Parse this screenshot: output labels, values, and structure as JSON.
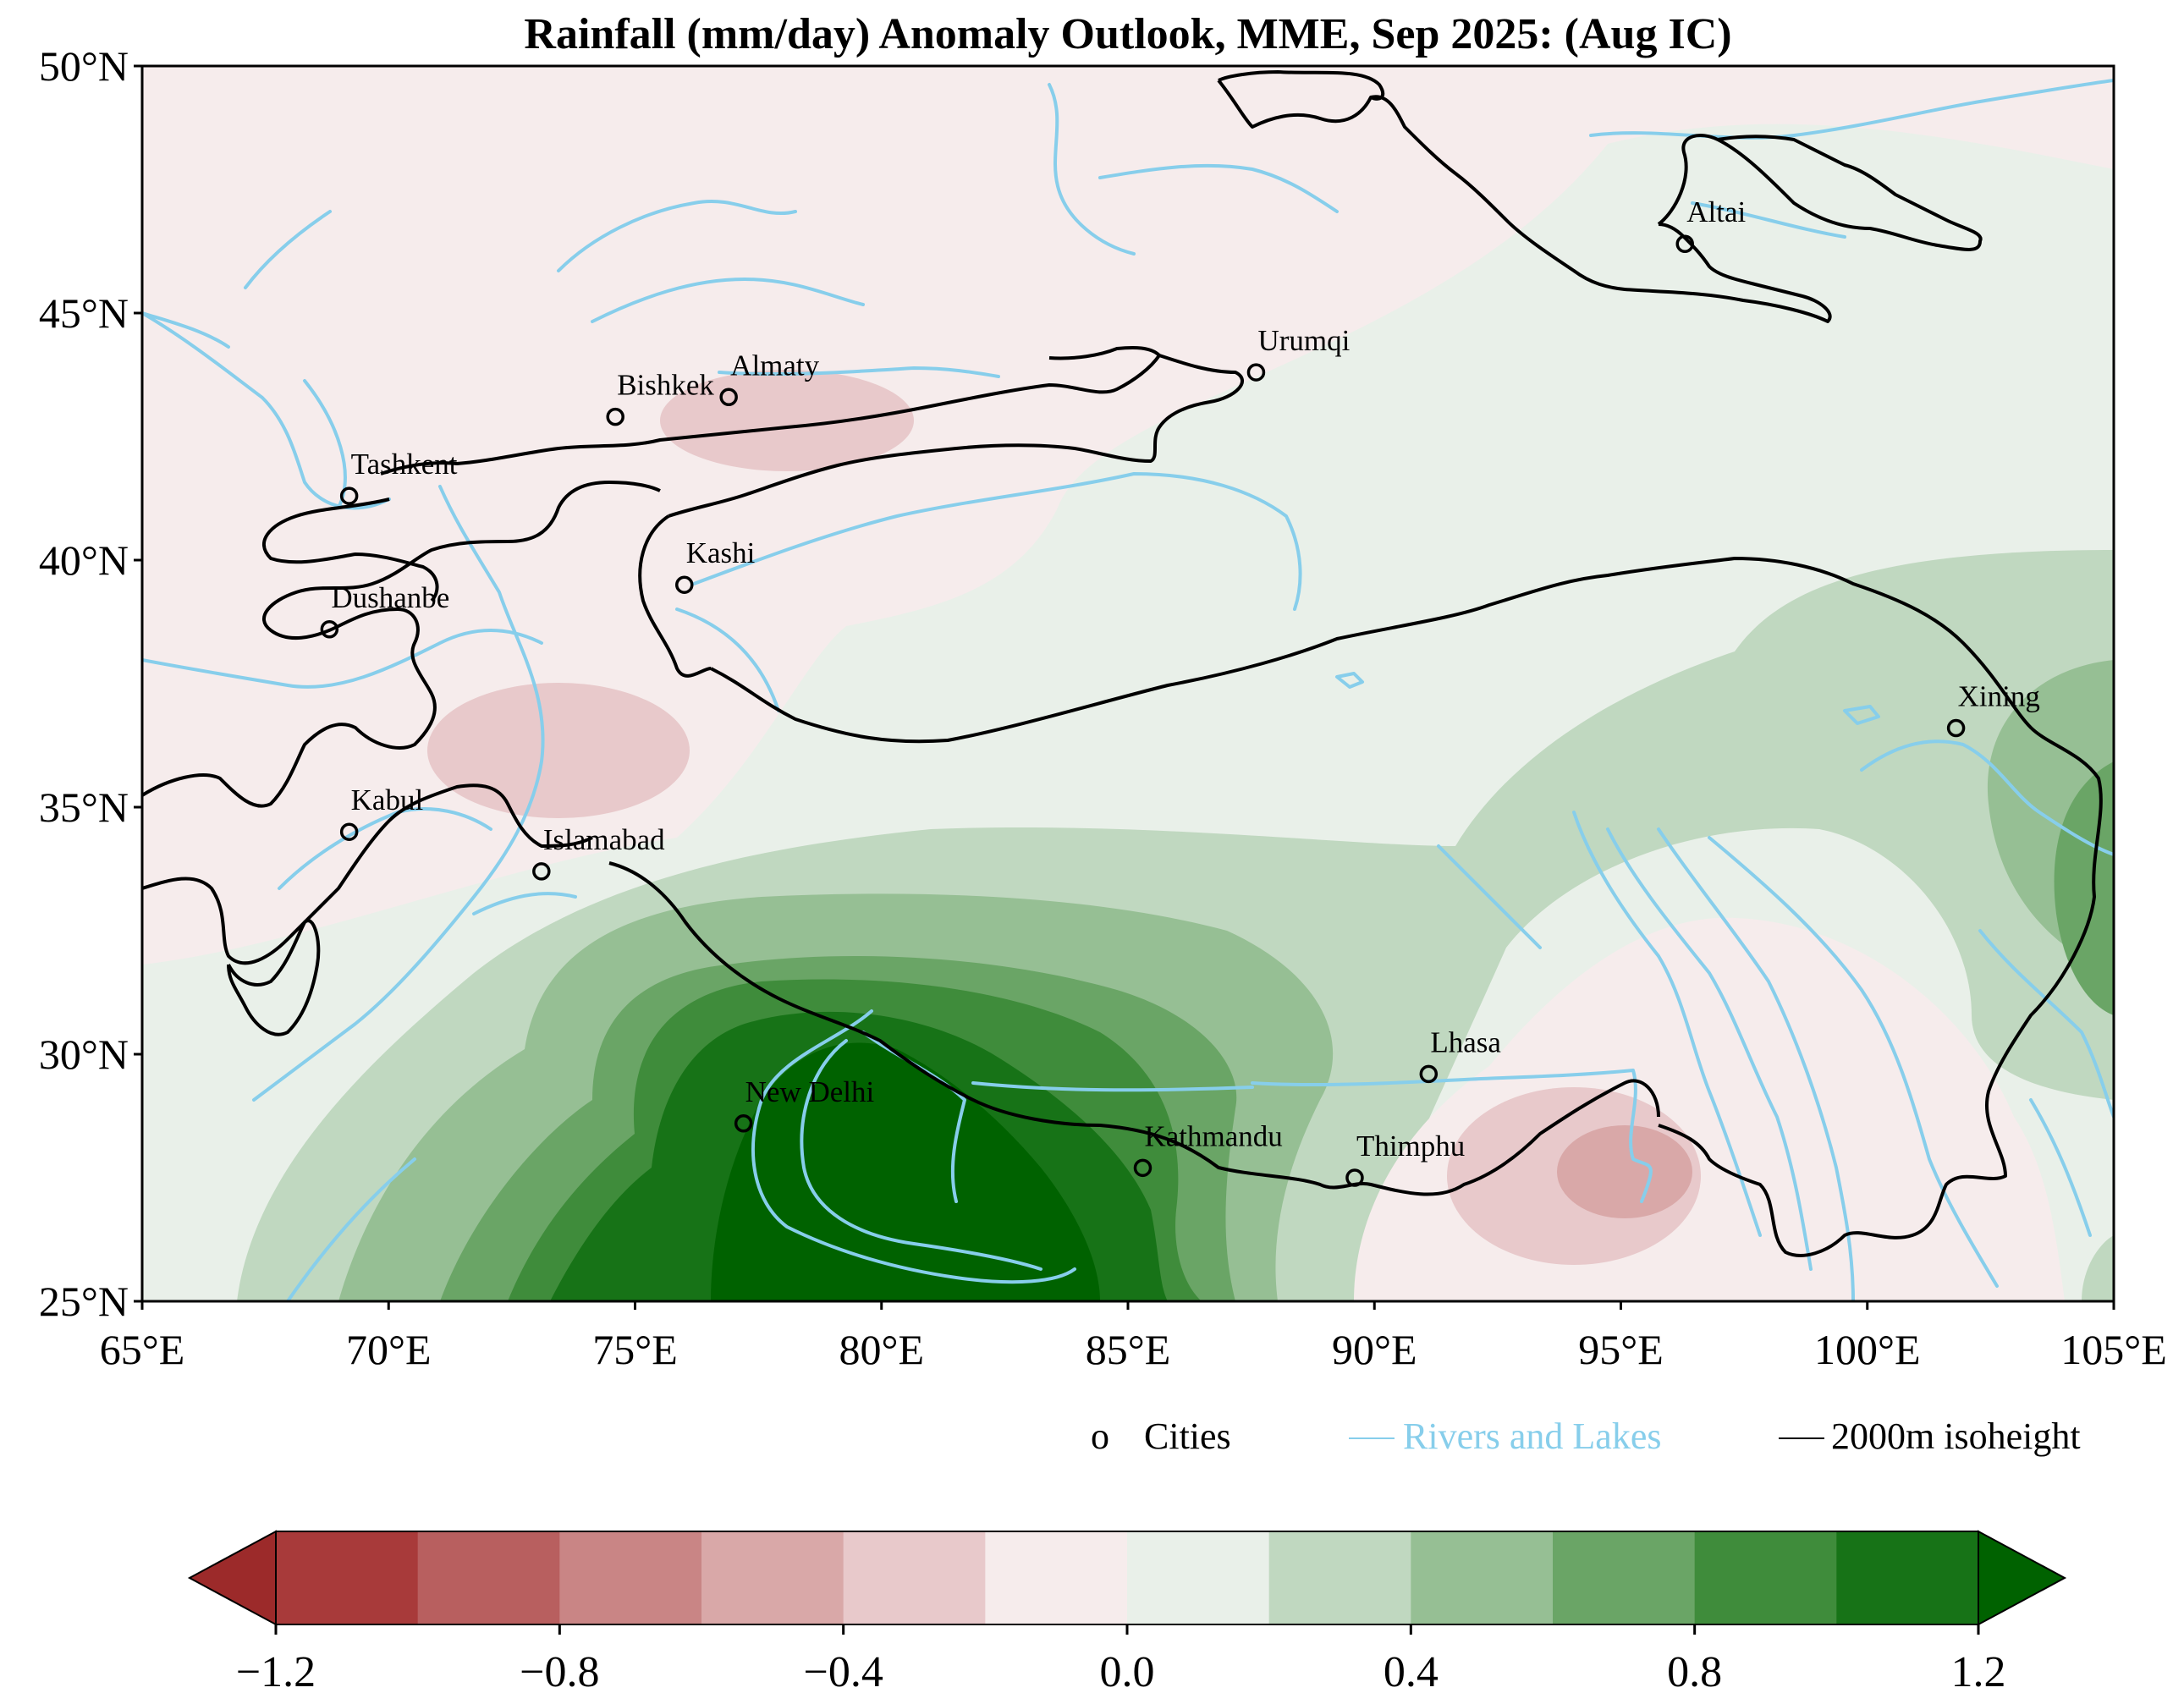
{
  "title": "Rainfall (mm/day) Anomaly Outlook, MME, Sep  2025:  (Aug IC)",
  "map": {
    "lon_range": [
      65,
      105
    ],
    "lat_range": [
      25,
      50
    ],
    "x_ticks": [
      "65°E",
      "70°E",
      "75°E",
      "80°E",
      "85°E",
      "90°E",
      "95°E",
      "100°E",
      "105°E"
    ],
    "y_ticks": [
      "50°N",
      "45°N",
      "40°N",
      "35°N",
      "30°N",
      "25°N"
    ]
  },
  "cities": [
    {
      "name": "Altai",
      "lon": 96.3,
      "lat": 46.4
    },
    {
      "name": "Urumqi",
      "lon": 87.6,
      "lat": 43.8
    },
    {
      "name": "Almaty",
      "lon": 76.9,
      "lat": 43.3
    },
    {
      "name": "Bishkek",
      "lon": 74.6,
      "lat": 42.9
    },
    {
      "name": "Tashkent",
      "lon": 69.2,
      "lat": 41.3
    },
    {
      "name": "Kashi",
      "lon": 76.0,
      "lat": 39.5
    },
    {
      "name": "Dushanbe",
      "lon": 68.8,
      "lat": 38.6
    },
    {
      "name": "Xining",
      "lon": 101.8,
      "lat": 36.6
    },
    {
      "name": "Kabul",
      "lon": 69.2,
      "lat": 34.5
    },
    {
      "name": "Islamabad",
      "lon": 73.1,
      "lat": 33.7
    },
    {
      "name": "Lhasa",
      "lon": 91.1,
      "lat": 29.6
    },
    {
      "name": "New Delhi",
      "lon": 77.2,
      "lat": 28.6
    },
    {
      "name": "Kathmandu",
      "lon": 85.3,
      "lat": 27.7
    },
    {
      "name": "Thimphu",
      "lon": 89.6,
      "lat": 27.5
    }
  ],
  "legend": {
    "cities_marker": "o",
    "cities": "Cities",
    "rivers": "Rivers and Lakes",
    "isoheight": "2000m isoheight"
  },
  "colorbar": {
    "ticks": [
      "−1.2",
      "−0.8",
      "−0.4",
      "0.0",
      "0.4",
      "0.8",
      "1.2"
    ],
    "levels": [
      -1.2,
      -1.0,
      -0.8,
      -0.6,
      -0.4,
      -0.2,
      0.0,
      0.2,
      0.4,
      0.6,
      0.8,
      1.0,
      1.2
    ],
    "colors": [
      "#a83a3a",
      "#b85f5f",
      "#c98585",
      "#d9a8a8",
      "#e8c9cb",
      "#f6ecec",
      "#e9f0e9",
      "#c0d8c0",
      "#96bf94",
      "#6aa566",
      "#3f8c3b",
      "#177317"
    ],
    "under_color": "#9c2a2a",
    "over_color": "#006200"
  },
  "colors": {
    "rivers": "#87ceeb",
    "isoheight": "#000000",
    "background": "#f6ecec"
  }
}
